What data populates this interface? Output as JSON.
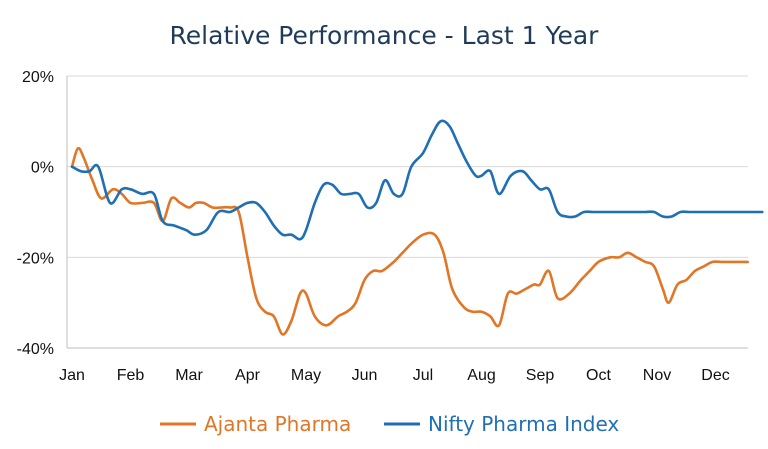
{
  "chart_data": {
    "type": "line",
    "title": "Relative Performance - Last 1 Year",
    "xlabel": "",
    "ylabel": "",
    "x_ticks": [
      "Jan",
      "Feb",
      "Mar",
      "Apr",
      "May",
      "Jun",
      "Jul",
      "Aug",
      "Sep",
      "Oct",
      "Nov",
      "Dec"
    ],
    "y_ticks": [
      "20%",
      "0%",
      "-20%",
      "-40%"
    ],
    "ylim": [
      -40,
      20
    ],
    "grid": "horizontal",
    "legend_position": "bottom",
    "series": [
      {
        "name": "Ajanta Pharma",
        "color": "#E07626",
        "x": [
          0,
          0.1,
          0.2,
          0.35,
          0.5,
          0.7,
          0.85,
          1.0,
          1.2,
          1.4,
          1.55,
          1.7,
          1.85,
          2.0,
          2.12,
          2.25,
          2.4,
          2.55,
          2.7,
          2.85,
          3.0,
          3.15,
          3.3,
          3.45,
          3.6,
          3.75,
          3.9,
          4.0,
          4.15,
          4.35,
          4.55,
          4.7,
          4.85,
          5.0,
          5.15,
          5.3,
          5.5,
          5.65,
          5.8,
          6.0,
          6.2,
          6.35,
          6.5,
          6.7,
          6.85,
          7.0,
          7.15,
          7.3,
          7.45,
          7.6,
          7.75,
          7.9,
          8.0,
          8.15,
          8.3,
          8.5,
          8.7,
          8.85,
          9.0,
          9.2,
          9.35,
          9.5,
          9.65,
          9.8,
          9.95,
          10.1,
          10.2,
          10.35,
          10.5,
          10.65,
          10.8,
          10.95,
          11.1,
          11.3,
          11.55
        ],
        "values": [
          0,
          4,
          2,
          -3,
          -7,
          -5,
          -6,
          -8,
          -8,
          -8,
          -12,
          -7,
          -8,
          -9,
          -8,
          -8,
          -9,
          -9,
          -9,
          -10,
          -20,
          -29,
          -32,
          -33,
          -37,
          -34,
          -28,
          -28,
          -33,
          -35,
          -33,
          -32,
          -30,
          -25,
          -23,
          -23,
          -21,
          -19,
          -17,
          -15,
          -15,
          -19,
          -27,
          -31,
          -32,
          -32,
          -33,
          -35,
          -28,
          -28,
          -27,
          -26,
          -26,
          -23,
          -29,
          -28,
          -25,
          -23,
          -21,
          -20,
          -20,
          -19,
          -20,
          -21,
          -22,
          -27,
          -30,
          -26,
          -25,
          -23,
          -22,
          -21,
          -21,
          -21,
          -21
        ]
      },
      {
        "name": "Nifty Pharma Index",
        "color": "#1F6FB5",
        "x": [
          0,
          0.15,
          0.3,
          0.45,
          0.65,
          0.85,
          1.0,
          1.2,
          1.4,
          1.55,
          1.75,
          1.95,
          2.1,
          2.3,
          2.5,
          2.7,
          2.85,
          3.0,
          3.15,
          3.3,
          3.45,
          3.6,
          3.75,
          3.9,
          4.0,
          4.15,
          4.3,
          4.45,
          4.6,
          4.75,
          4.9,
          5.05,
          5.2,
          5.35,
          5.5,
          5.65,
          5.8,
          6.0,
          6.15,
          6.3,
          6.45,
          6.6,
          6.75,
          6.9,
          7.0,
          7.15,
          7.3,
          7.5,
          7.7,
          7.85,
          8.0,
          8.15,
          8.3,
          8.45,
          8.6,
          8.75,
          8.9,
          9.05,
          9.2,
          9.35,
          9.5,
          9.65,
          9.8,
          9.95,
          10.1,
          10.25,
          10.4,
          10.55,
          10.7,
          10.85,
          11.0,
          11.2,
          11.4,
          11.6,
          11.8
        ],
        "values": [
          0,
          -1,
          -1,
          0,
          -8,
          -5,
          -5,
          -6,
          -6,
          -12,
          -13,
          -14,
          -15,
          -14,
          -10,
          -10,
          -9,
          -8,
          -8,
          -10,
          -13,
          -15,
          -15,
          -16,
          -14,
          -8,
          -4,
          -4,
          -6,
          -6,
          -6,
          -9,
          -8,
          -3,
          -6,
          -6,
          0,
          3,
          7,
          10,
          9,
          5,
          1,
          -2,
          -2,
          -1,
          -6,
          -2,
          -1,
          -3,
          -5,
          -5,
          -10,
          -11,
          -11,
          -10,
          -10,
          -10,
          -10,
          -10,
          -10,
          -10,
          -10,
          -10,
          -11,
          -11,
          -10,
          -10,
          -10,
          -10,
          -10,
          -10,
          -10,
          -10,
          -10
        ]
      }
    ]
  }
}
